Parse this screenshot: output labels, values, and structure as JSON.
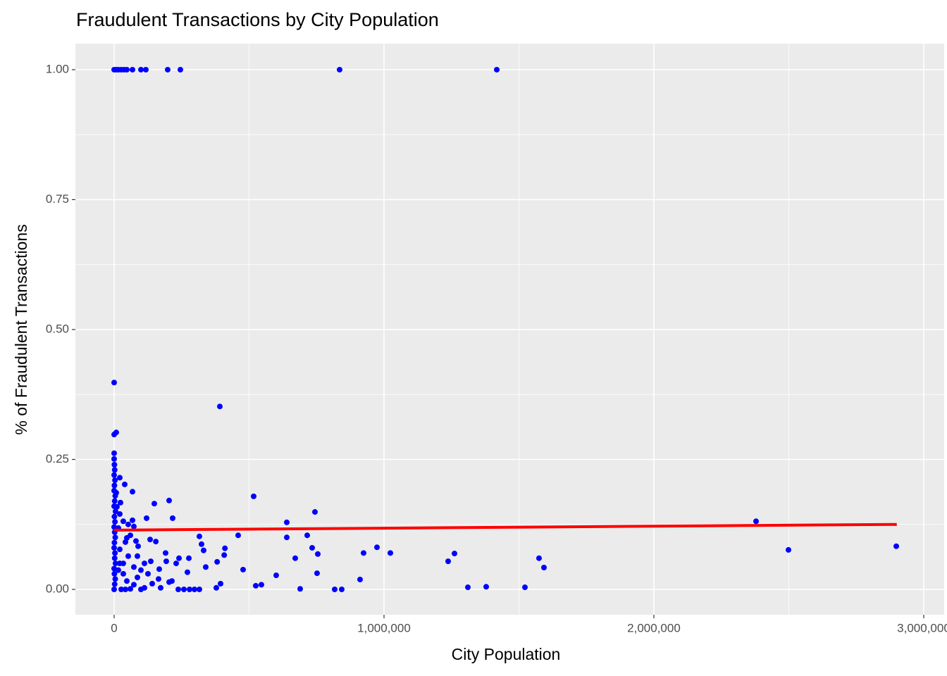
{
  "chart_data": {
    "type": "scatter",
    "title": "Fraudulent Transactions by City Population",
    "x_label": "City Population",
    "y_label": "% of Fraudulent Transactions",
    "xlim": [
      -143600,
      3075700
    ],
    "ylim": [
      -0.0488,
      1.0501
    ],
    "xticks": [
      0,
      {
        "value": 1000000,
        "label": "1,000,000"
      },
      {
        "value": 2000000,
        "label": "2,000,000"
      },
      {
        "value": 3000000,
        "label": "3,000,000"
      }
    ],
    "yticks": [
      {
        "value": 0,
        "label": "0.00"
      },
      {
        "value": 0.25,
        "label": "0.25"
      },
      {
        "value": 0.5,
        "label": "0.50"
      },
      {
        "value": 0.75,
        "label": "0.75"
      },
      {
        "value": 1,
        "label": "1.00"
      }
    ],
    "grid": true,
    "minor_grid": true,
    "points": {
      "color": "#0000ff",
      "x": [
        0,
        7800,
        15700,
        26100,
        36600,
        47000,
        67900,
        99200,
        117500,
        198400,
        245400,
        835500,
        1417800,
        0,
        0,
        7800,
        0,
        0,
        391600,
        517000,
        744100,
        148800,
        203700,
        120100,
        216700,
        639700,
        2378600,
        2498700,
        2898200,
        1574400,
        1592700,
        1261100,
        1237600,
        1023500,
        973900,
        924300,
        911200,
        817200,
        843300,
        689300,
        1310700,
        1378600,
        1522200,
        639700,
        715400,
        733700,
        754600,
        751900,
        671000,
        600500,
        524800,
        545700,
        477800,
        459500,
        410500,
        407800,
        381700,
        378600,
        394300,
        339400,
        315900,
        323800,
        331600,
        315900,
        297700,
        279400,
        258500,
        237600,
        276800,
        240300,
        229800,
        271500,
        203700,
        214100,
        190600,
        193100,
        167100,
        172300,
        133200,
        135800,
        141000,
        154500,
        112300,
        88800,
        80900,
        73100,
        67900,
        67900,
        39200,
        23500,
        47000,
        20900,
        1000,
        2000,
        0,
        3000,
        1000,
        0,
        4000,
        2000,
        0,
        5000,
        1000,
        3000,
        0,
        2000,
        4000,
        1000,
        0,
        3000,
        2000,
        5000,
        0,
        1000,
        4000,
        2000,
        0,
        20900,
        33900,
        41800,
        60100,
        52200,
        86200,
        99200,
        125300,
        20900,
        33900,
        47000,
        73100,
        99200,
        112300,
        60100,
        26100,
        41800,
        7800,
        10400,
        15700,
        20900,
        33900,
        15700,
        73100,
        86200,
        164500,
        52200
      ],
      "values": [
        1,
        1,
        1,
        1,
        1,
        1,
        1,
        1,
        1,
        1,
        1,
        1,
        1,
        0.398,
        0.298,
        0.302,
        0.262,
        0.251,
        0.352,
        0.179,
        0.149,
        0.165,
        0.171,
        0.137,
        0.137,
        0.129,
        0.131,
        0.076,
        0.083,
        0.06,
        0.042,
        0.069,
        0.054,
        0.07,
        0.081,
        0.07,
        0.019,
        0,
        0,
        0.001,
        0.004,
        0.005,
        0.004,
        0.1,
        0.104,
        0.08,
        0.068,
        0.031,
        0.06,
        0.027,
        0.007,
        0.009,
        0.038,
        0.104,
        0.079,
        0.066,
        0.053,
        0.003,
        0.011,
        0.043,
        0.102,
        0.087,
        0.075,
        0,
        0,
        0,
        0,
        0,
        0.06,
        0.06,
        0.05,
        0.033,
        0.014,
        0.016,
        0.07,
        0.054,
        0.039,
        0.003,
        0.096,
        0.054,
        0.011,
        0.092,
        0.05,
        0.083,
        0.093,
        0.121,
        0.133,
        0.188,
        0.202,
        0.167,
        0.099,
        0.215,
        0.24,
        0.23,
        0.22,
        0.21,
        0.2,
        0.19,
        0.18,
        0.17,
        0.16,
        0.15,
        0.14,
        0.13,
        0.12,
        0.11,
        0.1,
        0.09,
        0.08,
        0.07,
        0.06,
        0.05,
        0.04,
        0.03,
        0.02,
        0.01,
        0,
        0.145,
        0.131,
        0.091,
        0.104,
        0.064,
        0.064,
        0.037,
        0.03,
        0.05,
        0.03,
        0.016,
        0.009,
        0,
        0.003,
        0.001,
        0,
        0,
        0.186,
        0.159,
        0.118,
        0.077,
        0.05,
        0.037,
        0.043,
        0.023,
        0.02,
        0.125
      ]
    },
    "trend": {
      "color": "#ff0000",
      "x": [
        0,
        2900000
      ],
      "values": [
        0.114,
        0.125
      ]
    }
  }
}
